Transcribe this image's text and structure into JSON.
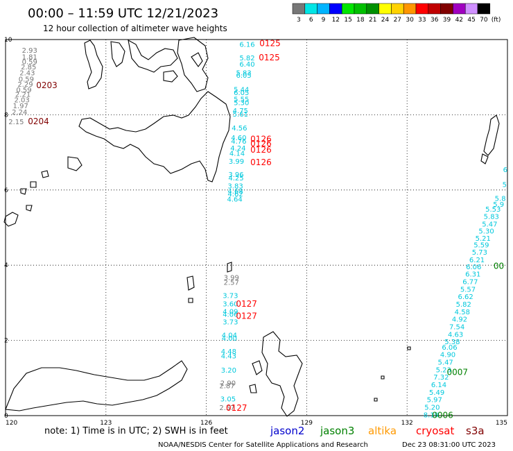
{
  "title": "00:00 – 11:59 UTC 12/21/2023",
  "subtitle": "12 hour collection of altimeter wave heights",
  "legend": {
    "unit": "(ft)",
    "bins": [
      {
        "label": "3",
        "color": "#777777"
      },
      {
        "label": "6",
        "color": "#00e5e5"
      },
      {
        "label": "9",
        "color": "#00b4ff"
      },
      {
        "label": "12",
        "color": "#0000ff"
      },
      {
        "label": "15",
        "color": "#00e600"
      },
      {
        "label": "18",
        "color": "#00c000"
      },
      {
        "label": "21",
        "color": "#009000"
      },
      {
        "label": "24",
        "color": "#ffff00"
      },
      {
        "label": "27",
        "color": "#ffd200"
      },
      {
        "label": "30",
        "color": "#ff9600"
      },
      {
        "label": "33",
        "color": "#ff0000"
      },
      {
        "label": "36",
        "color": "#c00000"
      },
      {
        "label": "39",
        "color": "#800000"
      },
      {
        "label": "42",
        "color": "#a000c0"
      },
      {
        "label": "45",
        "color": "#d090ff"
      },
      {
        "label": "70",
        "color": "#000000"
      }
    ]
  },
  "axes": {
    "lon": {
      "range": [
        120,
        135
      ],
      "ticks": [
        "120",
        "123",
        "126",
        "129",
        "132",
        "135"
      ]
    },
    "lat": {
      "range": [
        0,
        10
      ],
      "ticks": [
        "0",
        "2",
        "4",
        "6",
        "8",
        "10"
      ]
    }
  },
  "colors": {
    "gray": "#777777",
    "cyan": "#00c8dc",
    "red": "#ff0000",
    "darkred": "#800000",
    "green": "#008000"
  },
  "observations": [
    {
      "lon": 120.95,
      "lat": 9.72,
      "text": "2.93",
      "color": "gray"
    },
    {
      "lon": 120.95,
      "lat": 9.55,
      "text": "1.81",
      "color": "gray"
    },
    {
      "lon": 120.95,
      "lat": 9.42,
      "text": "0.59",
      "color": "gray"
    },
    {
      "lon": 120.92,
      "lat": 9.28,
      "text": "2.85",
      "color": "gray"
    },
    {
      "lon": 120.88,
      "lat": 9.12,
      "text": "2.43",
      "color": "gray"
    },
    {
      "lon": 120.85,
      "lat": 8.96,
      "text": "0.59",
      "color": "gray"
    },
    {
      "lon": 120.82,
      "lat": 8.82,
      "text": "2.29",
      "color": "gray"
    },
    {
      "lon": 120.78,
      "lat": 8.67,
      "text": "0.59",
      "color": "gray"
    },
    {
      "lon": 120.75,
      "lat": 8.55,
      "text": "2.21",
      "color": "gray"
    },
    {
      "lon": 120.72,
      "lat": 8.4,
      "text": "2.03",
      "color": "gray"
    },
    {
      "lon": 120.68,
      "lat": 8.25,
      "text": "1.97",
      "color": "gray"
    },
    {
      "lon": 120.65,
      "lat": 8.08,
      "text": "2.24",
      "color": "gray"
    },
    {
      "lon": 120.55,
      "lat": 7.82,
      "text": "2.15",
      "color": "gray"
    },
    {
      "lon": 127.45,
      "lat": 9.88,
      "text": "6.16",
      "color": "cyan"
    },
    {
      "lon": 127.45,
      "lat": 9.52,
      "text": "5.82",
      "color": "cyan"
    },
    {
      "lon": 127.45,
      "lat": 9.35,
      "text": "6.40",
      "color": "cyan"
    },
    {
      "lon": 127.35,
      "lat": 9.12,
      "text": "5.83",
      "color": "cyan"
    },
    {
      "lon": 127.35,
      "lat": 9.06,
      "text": "6.05",
      "color": "cyan"
    },
    {
      "lon": 127.28,
      "lat": 8.68,
      "text": "5.44",
      "color": "cyan"
    },
    {
      "lon": 127.28,
      "lat": 8.6,
      "text": "6.05",
      "color": "cyan"
    },
    {
      "lon": 127.28,
      "lat": 8.42,
      "text": "5.55",
      "color": "cyan"
    },
    {
      "lon": 127.28,
      "lat": 8.33,
      "text": "5.30",
      "color": "cyan"
    },
    {
      "lon": 127.25,
      "lat": 8.12,
      "text": "4.75",
      "color": "cyan"
    },
    {
      "lon": 127.25,
      "lat": 8.03,
      "text": "5.61",
      "color": "cyan"
    },
    {
      "lon": 127.22,
      "lat": 7.66,
      "text": "4.56",
      "color": "cyan"
    },
    {
      "lon": 127.2,
      "lat": 7.4,
      "text": "4.60",
      "color": "cyan"
    },
    {
      "lon": 127.2,
      "lat": 7.31,
      "text": "4.76",
      "color": "cyan"
    },
    {
      "lon": 127.18,
      "lat": 7.12,
      "text": "4.24",
      "color": "cyan"
    },
    {
      "lon": 127.15,
      "lat": 6.98,
      "text": "4.14",
      "color": "cyan"
    },
    {
      "lon": 127.13,
      "lat": 6.77,
      "text": "3.99",
      "color": "cyan"
    },
    {
      "lon": 127.12,
      "lat": 6.42,
      "text": "3.96",
      "color": "cyan"
    },
    {
      "lon": 127.12,
      "lat": 6.33,
      "text": "4.25",
      "color": "cyan"
    },
    {
      "lon": 127.1,
      "lat": 6.12,
      "text": "3.83",
      "color": "cyan"
    },
    {
      "lon": 127.1,
      "lat": 5.98,
      "text": "4.68",
      "color": "cyan"
    },
    {
      "lon": 127.1,
      "lat": 5.9,
      "text": "4.62",
      "color": "cyan"
    },
    {
      "lon": 127.08,
      "lat": 5.77,
      "text": "4.64",
      "color": "cyan"
    },
    {
      "lon": 126.98,
      "lat": 3.68,
      "text": "3.99",
      "color": "gray"
    },
    {
      "lon": 126.98,
      "lat": 3.55,
      "text": "2.57",
      "color": "gray"
    },
    {
      "lon": 126.95,
      "lat": 3.2,
      "text": "3.73",
      "color": "cyan"
    },
    {
      "lon": 126.95,
      "lat": 2.98,
      "text": "3.60",
      "color": "cyan"
    },
    {
      "lon": 126.95,
      "lat": 2.78,
      "text": "4.09",
      "color": "cyan"
    },
    {
      "lon": 126.95,
      "lat": 2.7,
      "text": "4.06",
      "color": "cyan"
    },
    {
      "lon": 126.95,
      "lat": 2.5,
      "text": "3.73",
      "color": "cyan"
    },
    {
      "lon": 126.92,
      "lat": 2.15,
      "text": "4.04",
      "color": "cyan"
    },
    {
      "lon": 126.92,
      "lat": 2.07,
      "text": "4.00",
      "color": "cyan"
    },
    {
      "lon": 126.9,
      "lat": 1.72,
      "text": "4.48",
      "color": "cyan"
    },
    {
      "lon": 126.9,
      "lat": 1.6,
      "text": "4.43",
      "color": "cyan"
    },
    {
      "lon": 126.9,
      "lat": 1.22,
      "text": "3.20",
      "color": "cyan"
    },
    {
      "lon": 126.88,
      "lat": 0.88,
      "text": "2.90",
      "color": "gray"
    },
    {
      "lon": 126.85,
      "lat": 0.8,
      "text": "2.87",
      "color": "gray"
    },
    {
      "lon": 126.88,
      "lat": 0.45,
      "text": "3.05",
      "color": "cyan"
    },
    {
      "lon": 126.85,
      "lat": 0.22,
      "text": "2.57",
      "color": "gray"
    },
    {
      "lon": 135.0,
      "lat": 6.55,
      "text": "6",
      "color": "cyan"
    },
    {
      "lon": 134.98,
      "lat": 6.15,
      "text": "5",
      "color": "cyan"
    },
    {
      "lon": 134.95,
      "lat": 5.78,
      "text": "5.8",
      "color": "cyan"
    },
    {
      "lon": 134.9,
      "lat": 5.63,
      "text": "5.9",
      "color": "cyan"
    },
    {
      "lon": 134.8,
      "lat": 5.5,
      "text": "5.53",
      "color": "cyan"
    },
    {
      "lon": 134.75,
      "lat": 5.3,
      "text": "5.83",
      "color": "cyan"
    },
    {
      "lon": 134.7,
      "lat": 5.1,
      "text": "5.47",
      "color": "cyan"
    },
    {
      "lon": 134.6,
      "lat": 4.92,
      "text": "5.30",
      "color": "cyan"
    },
    {
      "lon": 134.5,
      "lat": 4.72,
      "text": "5.21",
      "color": "cyan"
    },
    {
      "lon": 134.45,
      "lat": 4.55,
      "text": "5.59",
      "color": "cyan"
    },
    {
      "lon": 134.4,
      "lat": 4.35,
      "text": "5.73",
      "color": "cyan"
    },
    {
      "lon": 134.32,
      "lat": 4.15,
      "text": "6.21",
      "color": "cyan"
    },
    {
      "lon": 134.22,
      "lat": 3.97,
      "text": "6.06",
      "color": "cyan"
    },
    {
      "lon": 134.2,
      "lat": 3.77,
      "text": "6.31",
      "color": "cyan"
    },
    {
      "lon": 134.12,
      "lat": 3.57,
      "text": "6.77",
      "color": "cyan"
    },
    {
      "lon": 134.05,
      "lat": 3.37,
      "text": "5.57",
      "color": "cyan"
    },
    {
      "lon": 133.98,
      "lat": 3.17,
      "text": "6.62",
      "color": "cyan"
    },
    {
      "lon": 133.92,
      "lat": 2.97,
      "text": "5.82",
      "color": "cyan"
    },
    {
      "lon": 133.88,
      "lat": 2.77,
      "text": "4.58",
      "color": "cyan"
    },
    {
      "lon": 133.8,
      "lat": 2.57,
      "text": "4.92",
      "color": "cyan"
    },
    {
      "lon": 133.72,
      "lat": 2.37,
      "text": "7.54",
      "color": "cyan"
    },
    {
      "lon": 133.68,
      "lat": 2.17,
      "text": "4.63",
      "color": "cyan"
    },
    {
      "lon": 133.58,
      "lat": 1.97,
      "text": "5.38",
      "color": "cyan"
    },
    {
      "lon": 133.5,
      "lat": 1.83,
      "text": "6.06",
      "color": "cyan"
    },
    {
      "lon": 133.45,
      "lat": 1.63,
      "text": "4.90",
      "color": "cyan"
    },
    {
      "lon": 133.38,
      "lat": 1.43,
      "text": "5.47",
      "color": "cyan"
    },
    {
      "lon": 133.32,
      "lat": 1.23,
      "text": "5.23",
      "color": "cyan"
    },
    {
      "lon": 133.25,
      "lat": 1.03,
      "text": "7.32",
      "color": "cyan"
    },
    {
      "lon": 133.18,
      "lat": 0.83,
      "text": "6.14",
      "color": "cyan"
    },
    {
      "lon": 133.12,
      "lat": 0.63,
      "text": "5.49",
      "color": "cyan"
    },
    {
      "lon": 133.05,
      "lat": 0.43,
      "text": "5.97",
      "color": "cyan"
    },
    {
      "lon": 132.98,
      "lat": 0.23,
      "text": "5.20",
      "color": "cyan"
    },
    {
      "lon": 132.95,
      "lat": 0.03,
      "text": "8.19",
      "color": "cyan"
    }
  ],
  "passes": [
    {
      "lon": 128.22,
      "lat": 9.9,
      "text": "0125",
      "color": "red"
    },
    {
      "lon": 128.2,
      "lat": 9.52,
      "text": "0125",
      "color": "red"
    },
    {
      "lon": 121.55,
      "lat": 8.78,
      "text": "0203",
      "color": "darkred"
    },
    {
      "lon": 121.3,
      "lat": 7.82,
      "text": "0204",
      "color": "darkred"
    },
    {
      "lon": 127.95,
      "lat": 7.35,
      "text": "0126",
      "color": "red"
    },
    {
      "lon": 127.95,
      "lat": 7.23,
      "text": "0126",
      "color": "red"
    },
    {
      "lon": 127.95,
      "lat": 7.07,
      "text": "0126",
      "color": "red"
    },
    {
      "lon": 127.95,
      "lat": 6.73,
      "text": "0126",
      "color": "red"
    },
    {
      "lon": 127.52,
      "lat": 2.97,
      "text": "0127",
      "color": "red"
    },
    {
      "lon": 127.52,
      "lat": 2.65,
      "text": "0127",
      "color": "red"
    },
    {
      "lon": 127.22,
      "lat": 0.2,
      "text": "0127",
      "color": "red"
    },
    {
      "lon": 134.9,
      "lat": 3.98,
      "text": "00",
      "color": "green"
    },
    {
      "lon": 133.82,
      "lat": 1.15,
      "text": "0007",
      "color": "green"
    },
    {
      "lon": 133.38,
      "lat": 0.01,
      "text": "0006",
      "color": "green"
    }
  ],
  "note": "note: 1) Time is in UTC; 2) SWH is in feet",
  "satellites": [
    {
      "name": "jason2",
      "color": "#0000cc"
    },
    {
      "name": "jason3",
      "color": "#008000"
    },
    {
      "name": "altika",
      "color": "#ff9900"
    },
    {
      "name": "cryosat",
      "color": "#ff0000"
    },
    {
      "name": "s3a",
      "color": "#800000"
    }
  ],
  "footer": {
    "left": "NOAA/NESDIS Center for Satellite Applications and Research",
    "right": "Dec 23 08:31:00 UTC 2023"
  }
}
